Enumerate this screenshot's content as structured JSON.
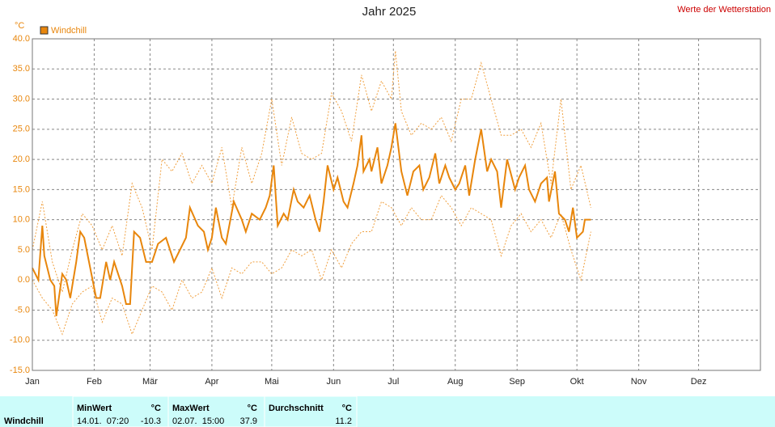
{
  "chart_data": {
    "type": "line",
    "title": "Jahr 2025",
    "source": "Werte der Wetterstation",
    "y_unit": "°C",
    "xlim": [
      0,
      365
    ],
    "ylim": [
      -15,
      40
    ],
    "xticks": [
      {
        "value": 0,
        "label": "Jan"
      },
      {
        "value": 31,
        "label": "Feb"
      },
      {
        "value": 59,
        "label": "Mär"
      },
      {
        "value": 90,
        "label": "Apr"
      },
      {
        "value": 120,
        "label": "Mai"
      },
      {
        "value": 151,
        "label": "Jun"
      },
      {
        "value": 181,
        "label": "Jul"
      },
      {
        "value": 212,
        "label": "Aug"
      },
      {
        "value": 243,
        "label": "Sep"
      },
      {
        "value": 273,
        "label": "Okt"
      },
      {
        "value": 304,
        "label": "Nov"
      },
      {
        "value": 334,
        "label": "Dez"
      }
    ],
    "yticks": [
      {
        "value": -15,
        "label": "-15.0"
      },
      {
        "value": -10,
        "label": "-10.0"
      },
      {
        "value": -5,
        "label": "-5.0"
      },
      {
        "value": 0,
        "label": "0.0"
      },
      {
        "value": 5,
        "label": "5.0"
      },
      {
        "value": 10,
        "label": "10.0"
      },
      {
        "value": 15,
        "label": "15.0"
      },
      {
        "value": 20,
        "label": "20.0"
      },
      {
        "value": 25,
        "label": "25.0"
      },
      {
        "value": 30,
        "label": "30.0"
      },
      {
        "value": 35,
        "label": "35.0"
      },
      {
        "value": 40,
        "label": "40.0"
      }
    ],
    "grid": true,
    "series": [
      {
        "name": "Windchill",
        "color": "#e8860c",
        "style": "solid",
        "x": [
          0,
          3,
          5,
          6,
          9,
          11,
          12,
          15,
          17,
          19,
          22,
          24,
          26,
          29,
          32,
          34,
          36,
          37,
          39,
          41,
          45,
          47,
          49,
          51,
          54,
          57,
          60,
          63,
          67,
          71,
          74,
          77,
          79,
          83,
          86,
          88,
          90,
          92,
          95,
          97,
          101,
          105,
          107,
          110,
          114,
          117,
          119,
          121,
          123,
          126,
          128,
          131,
          133,
          136,
          139,
          142,
          144,
          146,
          148,
          151,
          153,
          156,
          158,
          161,
          163,
          165,
          166,
          169,
          170,
          173,
          175,
          178,
          180,
          182,
          185,
          188,
          191,
          194,
          196,
          199,
          202,
          204,
          207,
          209,
          212,
          214,
          217,
          219,
          222,
          225,
          228,
          230,
          233,
          235,
          238,
          242,
          244,
          247,
          249,
          252,
          255,
          258,
          259,
          262,
          264,
          267,
          269,
          271,
          273,
          276,
          277,
          280
        ],
        "values": [
          2,
          0,
          9,
          4,
          0,
          -1,
          -6,
          1,
          0,
          -3,
          3,
          8,
          7,
          2,
          -3,
          -3,
          1,
          3,
          0,
          3,
          -1,
          -4,
          -4,
          8,
          7,
          3,
          3,
          6,
          7,
          3,
          5,
          7,
          12,
          9,
          8,
          5,
          7,
          12,
          7,
          6,
          13,
          10,
          8,
          11,
          10,
          12,
          14,
          19,
          9,
          11,
          10,
          15,
          13,
          12,
          14,
          10,
          8,
          13,
          19,
          15,
          17,
          13,
          12,
          16,
          19,
          24,
          18,
          20,
          18,
          22,
          16,
          19,
          22,
          26,
          18,
          14,
          18,
          19,
          15,
          17,
          21,
          16,
          19,
          17,
          15,
          16,
          19,
          14,
          20,
          25,
          18,
          20,
          18,
          12,
          20,
          15,
          17,
          19,
          15,
          13,
          16,
          17,
          13,
          18,
          11,
          10,
          8,
          12,
          7,
          8,
          10,
          10
        ]
      },
      {
        "color": "#f0a040",
        "style": "dotted",
        "x": [
          0,
          5,
          10,
          15,
          20,
          25,
          30,
          35,
          40,
          45,
          50,
          55,
          60,
          65,
          70,
          75,
          80,
          85,
          90,
          95,
          100,
          105,
          110,
          115,
          120,
          125,
          130,
          135,
          140,
          145,
          150,
          155,
          160,
          165,
          170,
          175,
          180,
          182,
          185,
          190,
          195,
          200,
          205,
          210,
          215,
          220,
          225,
          230,
          235,
          240,
          245,
          250,
          255,
          260,
          265,
          270,
          275,
          280
        ],
        "values": [
          5,
          13,
          3,
          -2,
          5,
          11,
          9,
          5,
          9,
          4,
          16,
          12,
          5,
          20,
          18,
          21,
          16,
          19,
          16,
          22,
          12,
          22,
          16,
          21,
          30,
          19,
          27,
          21,
          20,
          21,
          31,
          28,
          23,
          34,
          28,
          33,
          30,
          38,
          28,
          24,
          26,
          25,
          27,
          23,
          30,
          30,
          36,
          30,
          24,
          24,
          25,
          22,
          26,
          16,
          30,
          15,
          19,
          12
        ]
      },
      {
        "color": "#f0a040",
        "style": "dotted",
        "x": [
          0,
          5,
          10,
          15,
          20,
          25,
          30,
          35,
          40,
          45,
          50,
          55,
          60,
          65,
          70,
          75,
          80,
          85,
          90,
          95,
          100,
          105,
          110,
          115,
          120,
          125,
          130,
          135,
          140,
          145,
          150,
          155,
          160,
          165,
          170,
          175,
          180,
          185,
          190,
          195,
          200,
          205,
          210,
          215,
          220,
          225,
          230,
          235,
          240,
          245,
          250,
          255,
          260,
          265,
          270,
          275,
          280
        ],
        "values": [
          0,
          -3,
          -5,
          -9,
          -4,
          -2,
          -1,
          -7,
          -3,
          -4,
          -9,
          -5,
          -1,
          -2,
          -5,
          0,
          -3,
          -2,
          2,
          -3,
          2,
          1,
          3,
          3,
          1,
          2,
          5,
          4,
          5,
          0,
          5,
          2,
          6,
          8,
          8,
          13,
          12,
          9,
          12,
          10,
          10,
          14,
          12,
          9,
          12,
          11,
          10,
          4,
          9,
          11,
          8,
          10,
          7,
          11,
          5,
          0,
          8
        ]
      }
    ]
  },
  "table": {
    "row_label": "Windchill",
    "columns": [
      {
        "header": "MinWert",
        "unit": "°C",
        "time": "14.01.  07:20",
        "value": -10.3
      },
      {
        "header": "MaxWert",
        "unit": "°C",
        "time": "02.07.  15:00",
        "value": 37.9
      },
      {
        "header": "Durchschnitt",
        "unit": "°C",
        "value": 11.2
      }
    ]
  }
}
